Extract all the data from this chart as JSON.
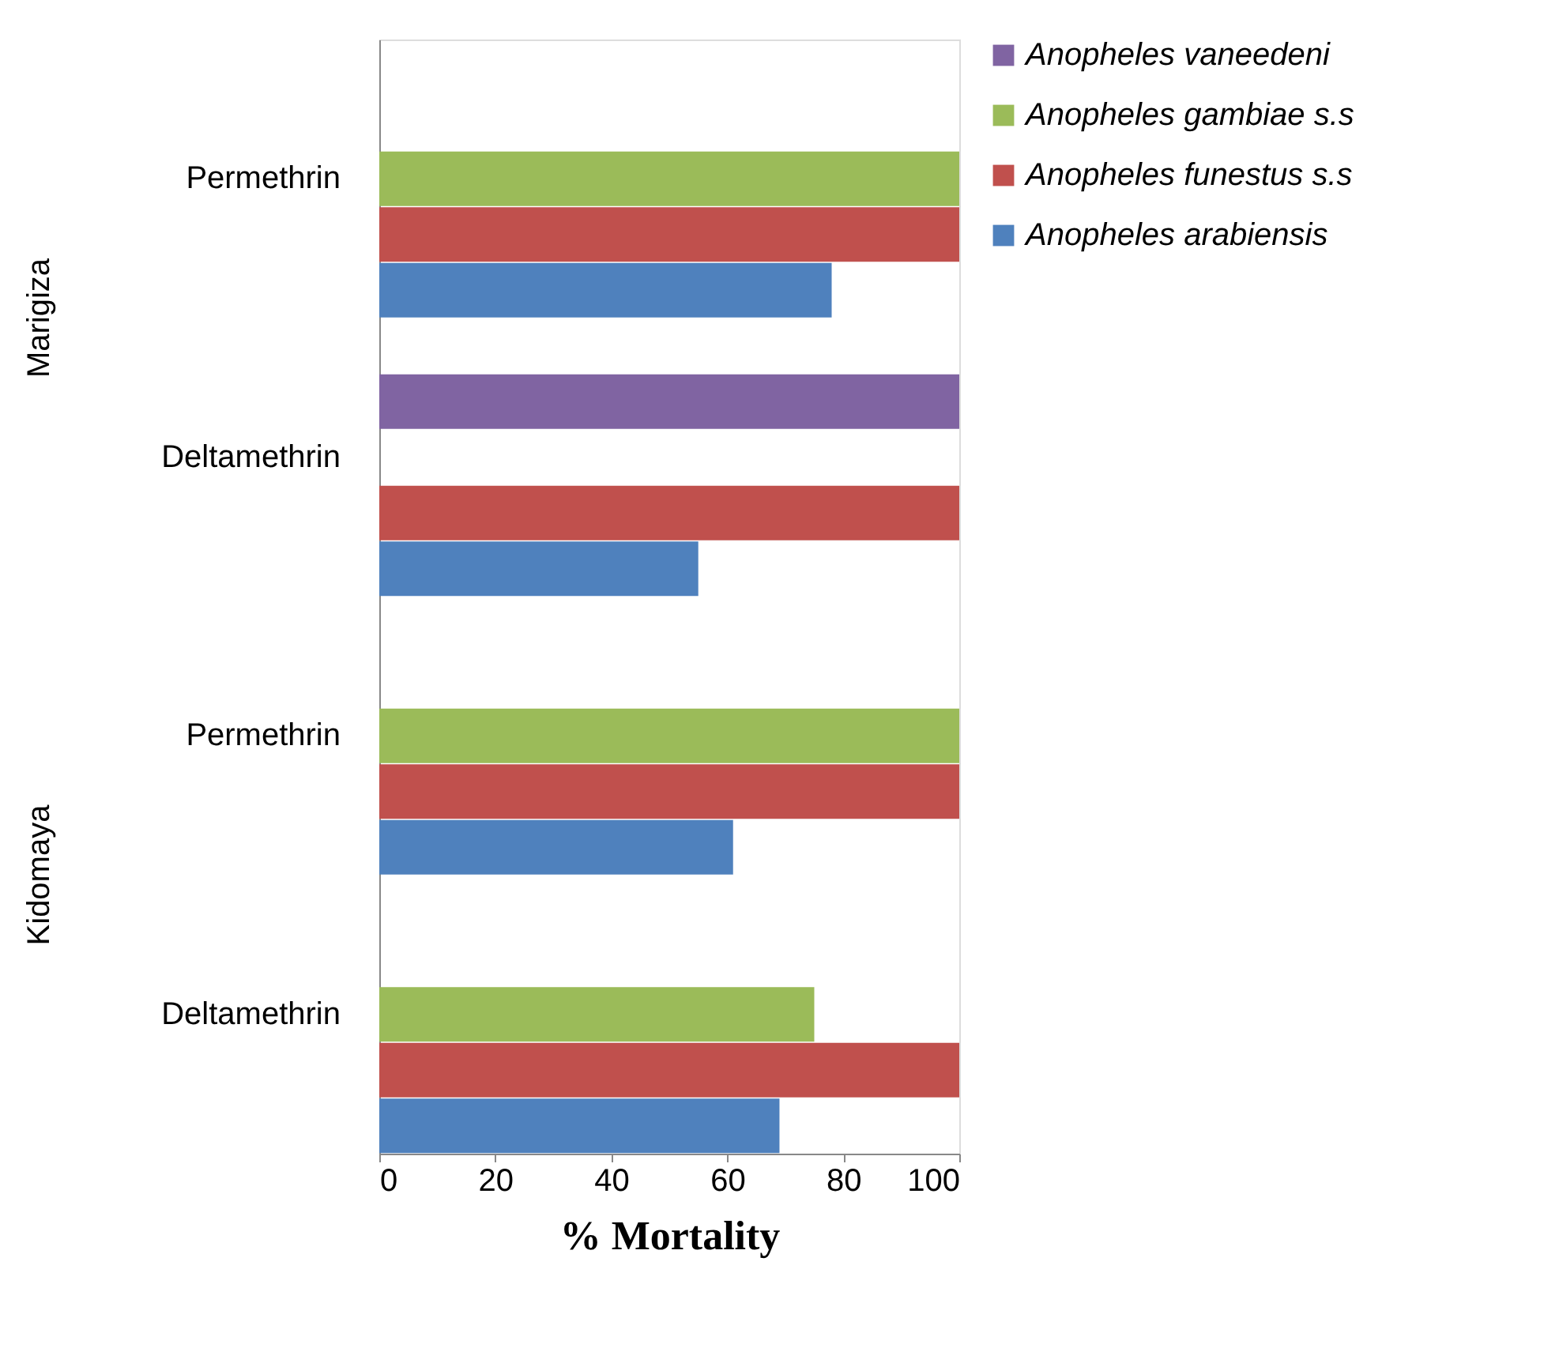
{
  "chart_data": {
    "type": "bar",
    "orientation": "horizontal",
    "xlabel": "% Mortality",
    "categories": [
      "Permethrin",
      "Deltamethrin",
      "Permethrin",
      "Deltamethrin"
    ],
    "annotations": [
      "Marigiza",
      "Kidomaya"
    ],
    "series": [
      {
        "name": "Anopheles vaneedeni",
        "color": "#8064a2",
        "values": [
          null,
          100,
          null,
          null
        ]
      },
      {
        "name": "Anopheles gambiae s.s",
        "color": "#9bbb59",
        "values": [
          100,
          null,
          100,
          75
        ]
      },
      {
        "name": "Anopheles funestus s.s",
        "color": "#c0504d",
        "values": [
          100,
          100,
          100,
          100
        ]
      },
      {
        "name": "Anopheles arabiensis",
        "color": "#4f81bd",
        "values": [
          78,
          55,
          61,
          69
        ]
      }
    ],
    "xlim": [
      0,
      100
    ],
    "xticks": [
      0,
      20,
      40,
      60,
      80,
      100
    ],
    "grid": false,
    "legend": "right"
  }
}
